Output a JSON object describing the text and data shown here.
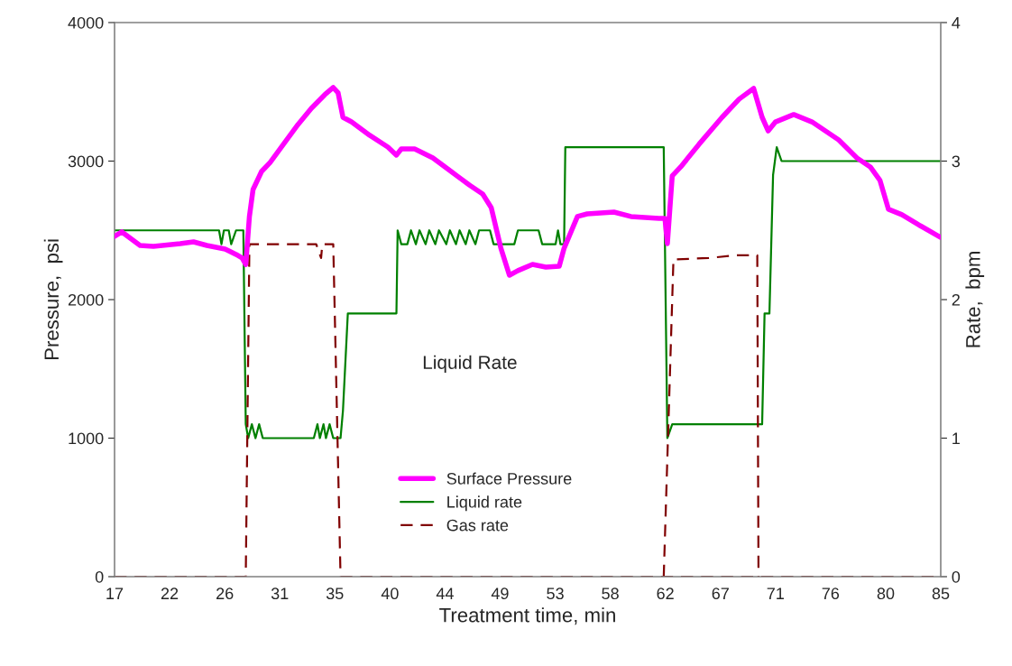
{
  "chart_data": {
    "type": "line",
    "xlabel": "Treatment time, min",
    "ylabel": "Pressure,  psi",
    "y2label": "Rate,  bpm",
    "annotations": [
      "Liquid Rate"
    ],
    "xlim": [
      17,
      85
    ],
    "xticks": [
      {
        "value": 17,
        "label": "17"
      },
      {
        "value": 21.53,
        "label": "22"
      },
      {
        "value": 26.07,
        "label": "26"
      },
      {
        "value": 30.6,
        "label": "31"
      },
      {
        "value": 35.13,
        "label": "35"
      },
      {
        "value": 39.67,
        "label": "40"
      },
      {
        "value": 44.2,
        "label": "44"
      },
      {
        "value": 48.73,
        "label": "49"
      },
      {
        "value": 53.27,
        "label": "53"
      },
      {
        "value": 57.8,
        "label": "58"
      },
      {
        "value": 62.33,
        "label": "62"
      },
      {
        "value": 66.87,
        "label": "67"
      },
      {
        "value": 71.4,
        "label": "71"
      },
      {
        "value": 75.93,
        "label": "76"
      },
      {
        "value": 80.47,
        "label": "80"
      },
      {
        "value": 85,
        "label": "85"
      }
    ],
    "ylim": [
      0,
      4000
    ],
    "yticks": [
      0,
      1000,
      2000,
      3000,
      4000
    ],
    "y2lim": [
      0,
      4
    ],
    "y2ticks": [
      0,
      1,
      2,
      3,
      4
    ],
    "grid": false,
    "legend": "bottom",
    "series": [
      {
        "name": "Surface Pressure",
        "color": "#ff00ff",
        "axis": "y",
        "line_style": "solid",
        "x": [
          17,
          17.6,
          18.3,
          19.1,
          20.2,
          22.4,
          23.5,
          24.6,
          26.1,
          27.0,
          27.5,
          27.8,
          28.1,
          28.4,
          29.1,
          29.8,
          30.9,
          32.1,
          33.2,
          34.3,
          35.0,
          35.4,
          35.8,
          36.5,
          38.0,
          39.5,
          40.2,
          40.6,
          41.7,
          43.2,
          44.7,
          46.2,
          47.3,
          48.0,
          48.8,
          49.5,
          50.2,
          51.4,
          52.5,
          53.6,
          54.0,
          55.1,
          55.9,
          58.1,
          59.5,
          61.8,
          62.3,
          62.5,
          62.9,
          63.6,
          65.1,
          67.0,
          68.4,
          69.6,
          70.3,
          70.8,
          71.4,
          72.9,
          74.4,
          76.6,
          78.1,
          79.2,
          80.0,
          80.7,
          81.8,
          83.3,
          85
        ],
        "values": [
          2456,
          2489,
          2443,
          2391,
          2385,
          2404,
          2417,
          2391,
          2365,
          2326,
          2300,
          2254,
          2600,
          2795,
          2925,
          2990,
          3121,
          3264,
          3381,
          3479,
          3531,
          3492,
          3316,
          3283,
          3186,
          3101,
          3043,
          3088,
          3088,
          3023,
          2925,
          2827,
          2762,
          2665,
          2371,
          2176,
          2209,
          2254,
          2235,
          2241,
          2371,
          2600,
          2619,
          2632,
          2600,
          2586,
          2586,
          2404,
          2893,
          2958,
          3121,
          3316,
          3447,
          3525,
          3316,
          3218,
          3283,
          3336,
          3283,
          3153,
          3023,
          2958,
          2860,
          2652,
          2613,
          2534,
          2449
        ]
      },
      {
        "name": "Liquid rate",
        "color": "#008000",
        "axis": "y2",
        "line_style": "solid",
        "x": [
          17,
          25.6,
          25.8,
          26.0,
          26.4,
          26.6,
          27.0,
          27.6,
          27.8,
          28.0,
          28.3,
          28.6,
          28.9,
          29.2,
          29.7,
          33.4,
          33.7,
          33.9,
          34.2,
          34.4,
          34.7,
          35.0,
          35.6,
          35.8,
          36.2,
          40.2,
          40.3,
          40.6,
          41.1,
          41.4,
          41.8,
          42.1,
          42.6,
          42.9,
          43.4,
          43.7,
          44.3,
          44.6,
          45.1,
          45.4,
          45.9,
          46.2,
          46.7,
          47.0,
          47.9,
          48.2,
          49.9,
          50.2,
          51.9,
          52.2,
          53.3,
          53.5,
          53.7,
          54.0,
          54.1,
          62.2,
          62.5,
          62.9,
          70.3,
          70.5,
          70.9,
          71.2,
          71.5,
          71.9,
          85
        ],
        "values": [
          2.5,
          2.5,
          2.4,
          2.5,
          2.5,
          2.4,
          2.5,
          2.5,
          1.1,
          1.0,
          1.1,
          1.0,
          1.1,
          1.0,
          1.0,
          1.0,
          1.1,
          1.0,
          1.1,
          1.0,
          1.1,
          1.0,
          1.0,
          1.2,
          1.9,
          1.9,
          2.5,
          2.4,
          2.4,
          2.5,
          2.4,
          2.5,
          2.4,
          2.5,
          2.4,
          2.5,
          2.4,
          2.5,
          2.4,
          2.5,
          2.4,
          2.5,
          2.4,
          2.5,
          2.5,
          2.4,
          2.4,
          2.5,
          2.5,
          2.4,
          2.4,
          2.5,
          2.4,
          2.4,
          3.1,
          3.1,
          1.0,
          1.1,
          1.1,
          1.9,
          1.9,
          2.9,
          3.1,
          3.0,
          3.0
        ]
      },
      {
        "name": "Gas rate",
        "color": "#800000",
        "axis": "y2",
        "line_style": "dashed",
        "x": [
          17,
          27.8,
          28.1,
          33.6,
          34.0,
          34.1,
          35.0,
          35.6,
          85
        ],
        "values": [
          0,
          0,
          2.4,
          2.4,
          2.3,
          2.4,
          2.4,
          0,
          0
        ]
      },
      {
        "color": "#800000",
        "axis": "y2",
        "line_style": "dashed",
        "x": [
          62.2,
          63.0,
          65.9,
          68.1,
          69.9,
          70.0
        ],
        "values": [
          0,
          2.29,
          2.3,
          2.32,
          2.32,
          0
        ]
      }
    ]
  }
}
